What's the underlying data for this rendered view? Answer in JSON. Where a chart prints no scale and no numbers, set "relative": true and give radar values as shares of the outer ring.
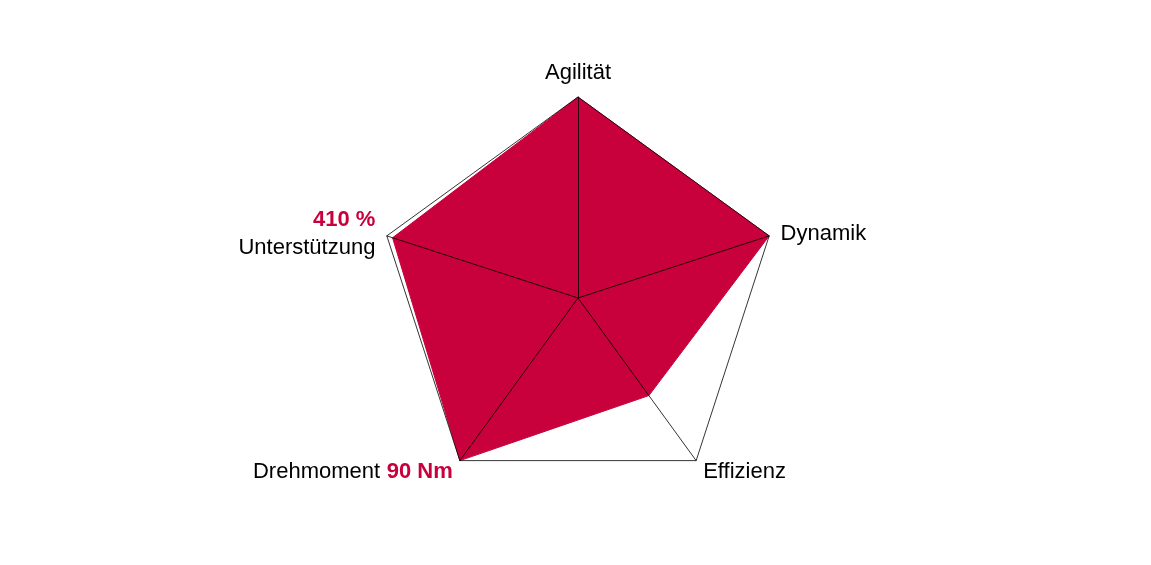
{
  "chart_data": {
    "type": "radar",
    "relative": true,
    "categories": [
      "Agilität",
      "Dynamik",
      "Effizienz",
      "Drehmoment",
      "Unterstützung"
    ],
    "series": [
      {
        "color": "#c8003c",
        "values": [
          1,
          1,
          0.6,
          1,
          0.97
        ]
      }
    ],
    "annotations": [
      {
        "text": "410 %",
        "x": "Unterstützung"
      },
      {
        "text": "90 Nm",
        "x": "Drehmoment"
      }
    ]
  }
}
